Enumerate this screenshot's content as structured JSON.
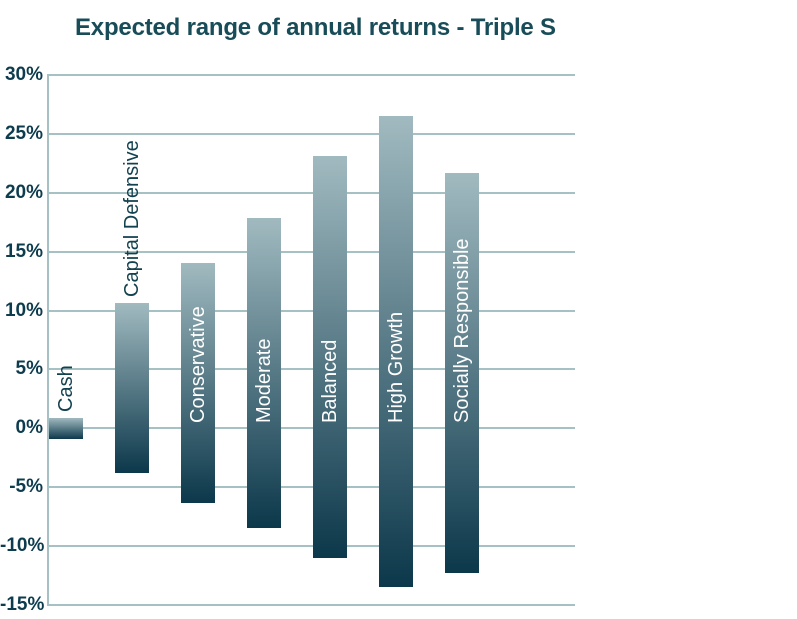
{
  "title": "Expected range of annual returns - Triple S",
  "colors": {
    "background": "#ffffff",
    "title": "#174c58",
    "axis_text": "#0d3c4e",
    "gridline": "#a6c1c4",
    "bar_gradient_top": "#a1bac0",
    "bar_gradient_bottom": "#0c384b",
    "label_inside_bar": "#ffffff",
    "label_above_bar": "#12414f"
  },
  "chart_data": {
    "type": "bar",
    "subtype": "floating-range-columns",
    "title": "Expected range of annual returns - Triple S",
    "categories": [
      "Cash",
      "Capital Defensive",
      "Conservative",
      "Moderate",
      "Balanced",
      "High Growth",
      "Socially Responsible"
    ],
    "series": [
      {
        "name": "max",
        "values": [
          0.9,
          10.6,
          14.0,
          17.9,
          23.1,
          26.5,
          21.7
        ]
      },
      {
        "name": "min",
        "values": [
          -0.9,
          -3.8,
          -6.3,
          -8.5,
          -11.0,
          -13.5,
          -12.3
        ]
      }
    ],
    "xlabel": "",
    "ylabel": "",
    "ylim": [
      -15,
      30
    ],
    "ytick_values": [
      30,
      25,
      20,
      15,
      10,
      5,
      0,
      -5,
      -10,
      -15
    ],
    "ytick_labels": [
      "30%",
      "25%",
      "20%",
      "15%",
      "10%",
      "5%",
      "0%",
      "-5%",
      "-10%",
      "-15%"
    ],
    "grid": "horizontal",
    "legend": "none",
    "label_placement": [
      "above-dark",
      "above-dark",
      "inside-white",
      "inside-white",
      "inside-white",
      "inside-white",
      "inside-white"
    ]
  }
}
